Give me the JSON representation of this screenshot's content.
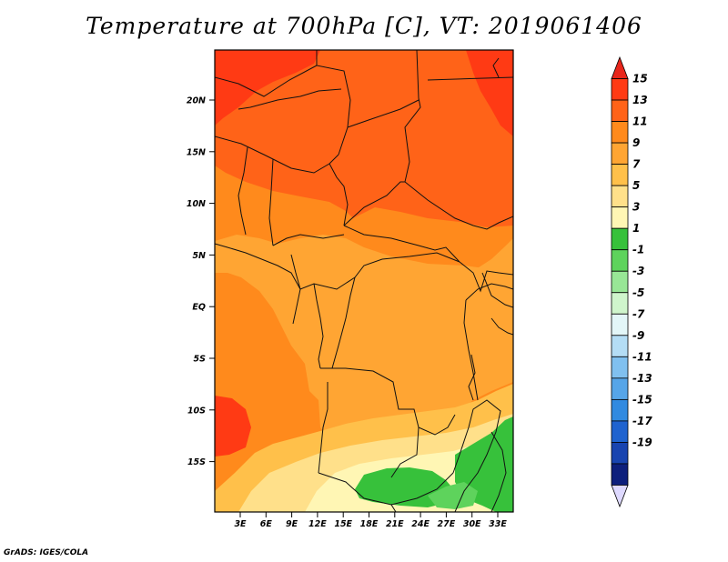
{
  "title": "Temperature at 700hPa [C], VT: 2019061406",
  "credit": "GrADS: IGES/COLA",
  "map": {
    "variable": "Temperature at 700hPa",
    "units": "C",
    "valid_time": "2019061406",
    "lat_labels": [
      "20N",
      "15N",
      "10N",
      "5N",
      "EQ",
      "5S",
      "10S",
      "15S"
    ],
    "lon_labels": [
      "3E",
      "6E",
      "9E",
      "12E",
      "15E",
      "18E",
      "21E",
      "24E",
      "27E",
      "30E",
      "33E"
    ]
  },
  "colorbar": {
    "labels": [
      "15",
      "13",
      "11",
      "9",
      "7",
      "5",
      "3",
      "1",
      "-1",
      "-3",
      "-5",
      "-7",
      "-9",
      "-11",
      "-13",
      "-15",
      "-17",
      "-19"
    ],
    "colors": [
      "#e8261b",
      "#ff3a14",
      "#ff6318",
      "#ff8a1c",
      "#ffa533",
      "#ffc04a",
      "#ffe08a",
      "#fff6b4",
      "#37c13b",
      "#5ed35c",
      "#98e696",
      "#cff5cc",
      "#e3f6f8",
      "#b4ddf5",
      "#80c0ef",
      "#56a5e8",
      "#318ae0",
      "#1f63cf",
      "#1844b0",
      "#0d1f7c",
      "#ded9ff"
    ]
  }
}
